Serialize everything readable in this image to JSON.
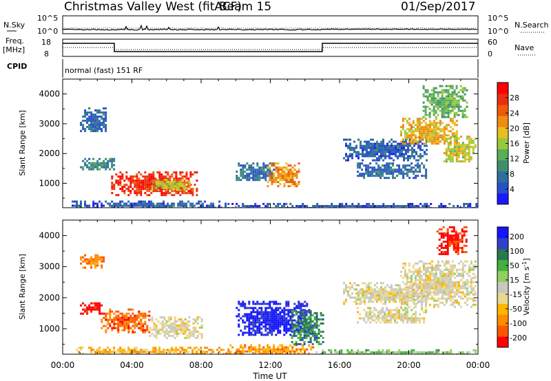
{
  "header": {
    "title": "Christmas Valley West (fitACF)",
    "beam": "Beam 15",
    "date": "01/Sep/2017"
  },
  "strips": {
    "nsky_label": "N.Sky",
    "nsearch_label": "N.Search",
    "nsky_ticks": [
      "10^5",
      "10^0"
    ],
    "nsearch_ticks": [
      "10^5",
      "10^0"
    ],
    "freq_label": "Freq.",
    "freq_unit": "[MHz]",
    "freq_ticks": [
      "18",
      "8"
    ],
    "nave_label": "Nave",
    "nave_ticks": [
      "60",
      "0"
    ],
    "cpid_label": "CPID",
    "cpid_value": "normal (fast) 151 RF"
  },
  "colors": {
    "power": [
      "#1a1aff",
      "#2850c8",
      "#2e6f9e",
      "#3f8f6f",
      "#5aae5a",
      "#9ac83c",
      "#e6c020",
      "#f08c10",
      "#f05a0a",
      "#e83010",
      "#ff0000"
    ],
    "velocity": [
      "#ff0000",
      "#ff5500",
      "#ff8c00",
      "#ffb400",
      "#e8d890",
      "#c8c8c0",
      "#90d060",
      "#44b040",
      "#287850",
      "#3040c8",
      "#1414ff"
    ]
  },
  "chart_data": [
    {
      "type": "heatmap",
      "name": "power",
      "ylabel": "Slant Range [km]",
      "xlabel": "Time UT",
      "x_ticks": [
        "00:00",
        "04:00",
        "08:00",
        "12:00",
        "16:00",
        "20:00",
        "00:00"
      ],
      "xlim_hours": [
        0,
        24
      ],
      "ylim_km": [
        180,
        4500
      ],
      "y_ticks": [
        1000,
        2000,
        3000,
        4000
      ],
      "colorbar": {
        "label": "Power [dB]",
        "range": [
          0,
          32
        ],
        "ticks": [
          "4",
          "8",
          "12",
          "16",
          "20",
          "24",
          "28"
        ]
      },
      "regions": [
        {
          "x": [
            0.4,
            9.4
          ],
          "y": [
            180,
            420
          ],
          "level": 0.18
        },
        {
          "x": [
            9.4,
            24.0
          ],
          "y": [
            180,
            340
          ],
          "level": 0.15
        },
        {
          "x": [
            1.0,
            2.5
          ],
          "y": [
            2750,
            3550
          ],
          "level": 0.2
        },
        {
          "x": [
            1.0,
            3.0
          ],
          "y": [
            1450,
            1850
          ],
          "level": 0.28
        },
        {
          "x": [
            2.8,
            7.8
          ],
          "y": [
            600,
            1400
          ],
          "level": 0.88
        },
        {
          "x": [
            5.0,
            7.3
          ],
          "y": [
            800,
            1150
          ],
          "level": 0.55
        },
        {
          "x": [
            10.0,
            12.2
          ],
          "y": [
            1100,
            1700
          ],
          "level": 0.22
        },
        {
          "x": [
            11.8,
            13.6
          ],
          "y": [
            900,
            1700
          ],
          "level": 0.68
        },
        {
          "x": [
            16.2,
            21.0
          ],
          "y": [
            1800,
            2500
          ],
          "level": 0.18
        },
        {
          "x": [
            17.0,
            21.0
          ],
          "y": [
            1200,
            1700
          ],
          "level": 0.2
        },
        {
          "x": [
            19.5,
            22.8
          ],
          "y": [
            2300,
            3200
          ],
          "level": 0.62
        },
        {
          "x": [
            22.0,
            23.8
          ],
          "y": [
            1700,
            2600
          ],
          "level": 0.55
        },
        {
          "x": [
            20.8,
            23.4
          ],
          "y": [
            3200,
            4300
          ],
          "level": 0.42
        }
      ]
    },
    {
      "type": "heatmap",
      "name": "velocity",
      "ylabel": "Slant Range [km]",
      "xlabel": "Time UT",
      "x_ticks": [
        "00:00",
        "04:00",
        "08:00",
        "12:00",
        "16:00",
        "20:00",
        "00:00"
      ],
      "xlim_hours": [
        0,
        24
      ],
      "ylim_km": [
        180,
        4500
      ],
      "y_ticks": [
        1000,
        2000,
        3000,
        4000
      ],
      "colorbar": {
        "label": "Velocity [m s^-1]",
        "ticks": [
          "200",
          "100",
          "50",
          "15",
          "-15",
          "-50",
          "-100",
          "-200"
        ]
      },
      "regions": [
        {
          "x": [
            0.4,
            9.4
          ],
          "y": [
            180,
            420
          ],
          "level": 0.3
        },
        {
          "x": [
            9.4,
            14.5
          ],
          "y": [
            180,
            500
          ],
          "level": 0.25
        },
        {
          "x": [
            14.5,
            24.0
          ],
          "y": [
            180,
            340
          ],
          "level": 0.62
        },
        {
          "x": [
            1.0,
            2.2
          ],
          "y": [
            1500,
            1850
          ],
          "level": 0.02
        },
        {
          "x": [
            2.2,
            5.0
          ],
          "y": [
            900,
            1650
          ],
          "level": 0.16
        },
        {
          "x": [
            5.0,
            8.0
          ],
          "y": [
            700,
            1400
          ],
          "level": 0.45
        },
        {
          "x": [
            1.0,
            2.4
          ],
          "y": [
            3000,
            3400
          ],
          "level": 0.2
        },
        {
          "x": [
            10.0,
            14.2
          ],
          "y": [
            800,
            1900
          ],
          "level": 0.95
        },
        {
          "x": [
            13.2,
            15.0
          ],
          "y": [
            500,
            1600
          ],
          "level": 0.75
        },
        {
          "x": [
            16.2,
            21.0
          ],
          "y": [
            1800,
            2500
          ],
          "level": 0.45
        },
        {
          "x": [
            17.0,
            21.0
          ],
          "y": [
            1200,
            1700
          ],
          "level": 0.45
        },
        {
          "x": [
            19.5,
            23.8
          ],
          "y": [
            1700,
            3200
          ],
          "level": 0.45
        },
        {
          "x": [
            21.6,
            23.3
          ],
          "y": [
            3400,
            4300
          ],
          "level": 0.05
        }
      ]
    }
  ]
}
